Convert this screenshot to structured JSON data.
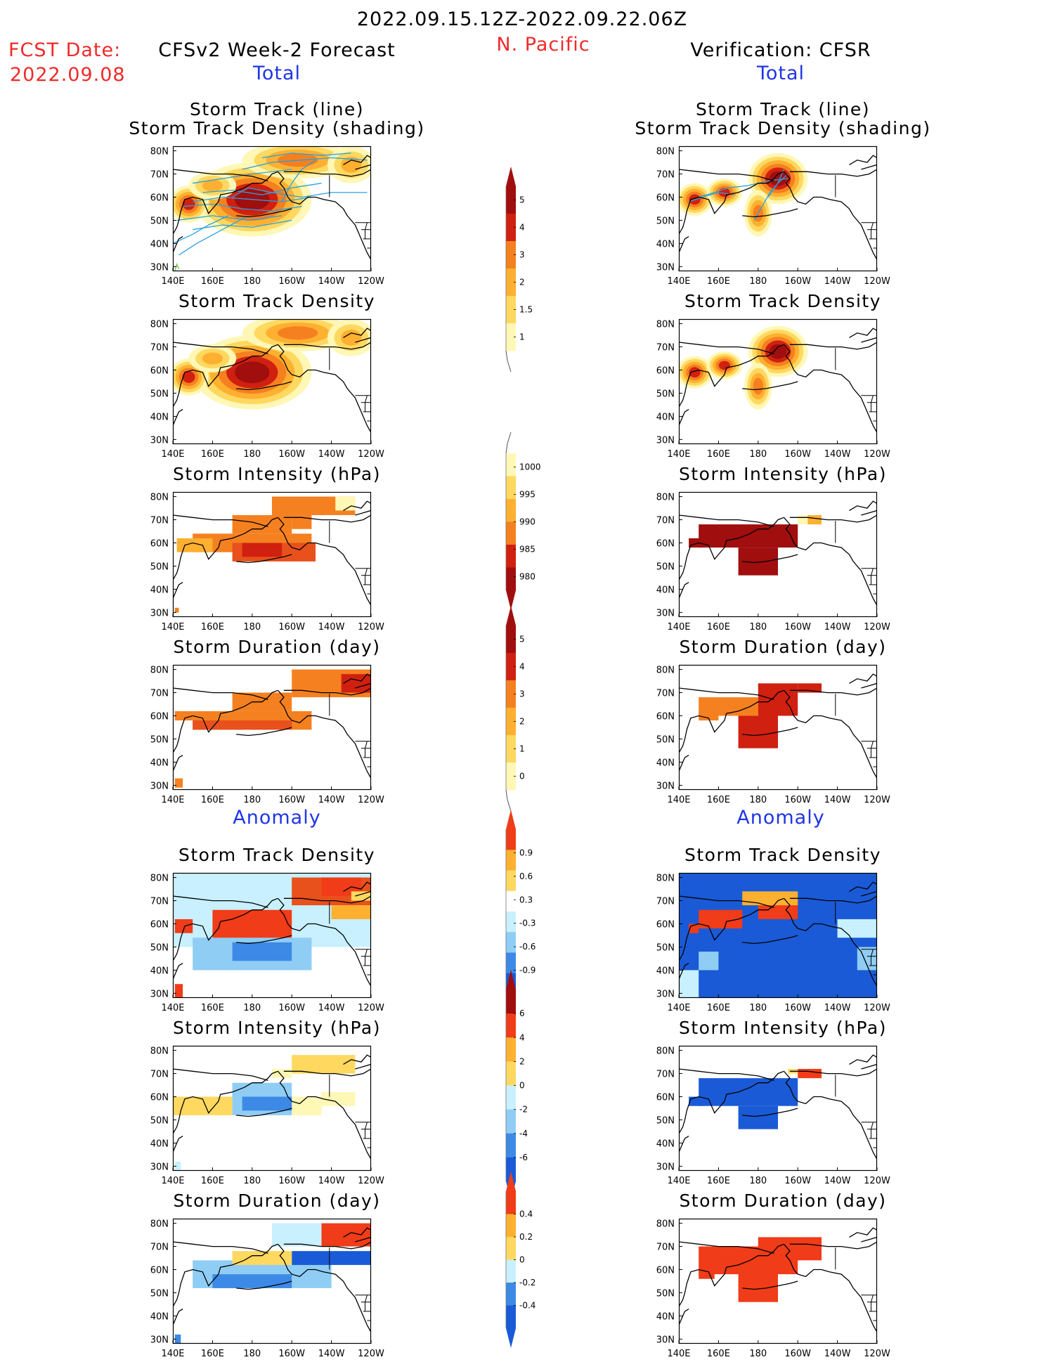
{
  "header": {
    "date_range": "2022.09.15.12Z-2022.09.22.06Z",
    "region": "N. Pacific",
    "fcst_label": "FCST Date:",
    "fcst_date": "2022.09.08",
    "left_title": "CFSv2 Week-2 Forecast",
    "right_title": "Verification: CFSR",
    "left_total": "Total",
    "right_total": "Total",
    "left_anomaly": "Anomaly",
    "right_anomaly": "Anomaly"
  },
  "panel_titles": {
    "track_line": "Storm Track (line)",
    "track_shading": "Storm Track Density (shading)",
    "density": "Storm Track Density",
    "intensity": "Storm Intensity (hPa)",
    "duration": "Storm Duration (day)"
  },
  "map_axes": {
    "lon_ticks": [
      "140E",
      "160E",
      "180",
      "160W",
      "140W",
      "120W"
    ],
    "lat_ticks": [
      "80N",
      "70N",
      "60N",
      "50N",
      "40N",
      "30N"
    ]
  },
  "colors": {
    "yellow_light": "#fff7b5",
    "yellow": "#ffd860",
    "orange_light": "#ffb030",
    "orange": "#f58020",
    "red_orange": "#e8501c",
    "red": "#d02010",
    "dark_red": "#a00e0e",
    "anom_red": "#f03c18",
    "cyan_light": "#c8f0ff",
    "sky": "#8fcdf5",
    "blue": "#3c8ae6",
    "blue_dark": "#1a5ad6",
    "track_line": "#2aa0e0",
    "track_green": "#70c040"
  },
  "colorbars": [
    {
      "name": "total-density",
      "labels": [
        "5",
        "4",
        "3",
        "2",
        "1.5",
        "1"
      ]
    },
    {
      "name": "total-intensity",
      "labels": [
        "1000",
        "995",
        "990",
        "985",
        "980"
      ]
    },
    {
      "name": "total-duration",
      "labels": [
        "5",
        "4",
        "3",
        "2",
        "1",
        "0"
      ]
    },
    {
      "name": "anomaly-density",
      "labels": [
        "0.9",
        "0.6",
        "0.3",
        "-0.3",
        "-0.6",
        "-0.9"
      ]
    },
    {
      "name": "anomaly-intensity",
      "labels": [
        "6",
        "4",
        "2",
        "0",
        "-2",
        "-4",
        "-6"
      ]
    },
    {
      "name": "anomaly-duration",
      "labels": [
        "0.4",
        "0.2",
        "0",
        "-0.2",
        "-0.4"
      ]
    }
  ],
  "chart_data": [
    {
      "type": "heatmap",
      "title": "Storm Track (line) Storm Track Density (shading)",
      "panel": "forecast-total-track",
      "xlabel": "",
      "ylabel": "",
      "x_range": [
        "140E",
        "120W"
      ],
      "y_range": [
        "30N",
        "80N"
      ],
      "features": [
        {
          "lon": 180,
          "lat": 58,
          "value": 5
        },
        {
          "lon": 145,
          "lat": 57,
          "value": 4
        },
        {
          "lon": 200,
          "lat": 75,
          "value": 2
        }
      ]
    },
    {
      "type": "heatmap",
      "title": "Storm Track (line) Storm Track Density (shading)",
      "panel": "verification-total-track",
      "xlabel": "",
      "ylabel": "",
      "x_range": [
        "140E",
        "120W"
      ],
      "y_range": [
        "30N",
        "80N"
      ],
      "features": [
        {
          "lon": 190,
          "lat": 67,
          "value": 5
        },
        {
          "lon": 145,
          "lat": 59,
          "value": 4
        }
      ]
    },
    {
      "type": "heatmap",
      "title": "Storm Track Density",
      "panel": "forecast-total-density",
      "x_range": [
        "140E",
        "120W"
      ],
      "y_range": [
        "30N",
        "80N"
      ]
    },
    {
      "type": "heatmap",
      "title": "Storm Track Density",
      "panel": "verification-total-density",
      "x_range": [
        "140E",
        "120W"
      ],
      "y_range": [
        "30N",
        "80N"
      ]
    },
    {
      "type": "heatmap",
      "title": "Storm Intensity (hPa)",
      "panel": "forecast-total-intensity",
      "x_range": [
        "140E",
        "120W"
      ],
      "y_range": [
        "30N",
        "80N"
      ]
    },
    {
      "type": "heatmap",
      "title": "Storm Intensity (hPa)",
      "panel": "verification-total-intensity",
      "x_range": [
        "140E",
        "120W"
      ],
      "y_range": [
        "30N",
        "80N"
      ]
    },
    {
      "type": "heatmap",
      "title": "Storm Duration (day)",
      "panel": "forecast-total-duration",
      "x_range": [
        "140E",
        "120W"
      ],
      "y_range": [
        "30N",
        "80N"
      ]
    },
    {
      "type": "heatmap",
      "title": "Storm Duration (day)",
      "panel": "verification-total-duration",
      "x_range": [
        "140E",
        "120W"
      ],
      "y_range": [
        "30N",
        "80N"
      ]
    },
    {
      "type": "heatmap",
      "title": "Storm Track Density",
      "panel": "forecast-anomaly-density",
      "x_range": [
        "140E",
        "120W"
      ],
      "y_range": [
        "30N",
        "80N"
      ]
    },
    {
      "type": "heatmap",
      "title": "Storm Track Density",
      "panel": "verification-anomaly-density",
      "x_range": [
        "140E",
        "120W"
      ],
      "y_range": [
        "30N",
        "80N"
      ]
    },
    {
      "type": "heatmap",
      "title": "Storm Intensity (hPa)",
      "panel": "forecast-anomaly-intensity",
      "x_range": [
        "140E",
        "120W"
      ],
      "y_range": [
        "30N",
        "80N"
      ]
    },
    {
      "type": "heatmap",
      "title": "Storm Intensity (hPa)",
      "panel": "verification-anomaly-intensity",
      "x_range": [
        "140E",
        "120W"
      ],
      "y_range": [
        "30N",
        "80N"
      ]
    },
    {
      "type": "heatmap",
      "title": "Storm Duration (day)",
      "panel": "forecast-anomaly-duration",
      "x_range": [
        "140E",
        "120W"
      ],
      "y_range": [
        "30N",
        "80N"
      ]
    },
    {
      "type": "heatmap",
      "title": "Storm Duration (day)",
      "panel": "verification-anomaly-duration",
      "x_range": [
        "140E",
        "120W"
      ],
      "y_range": [
        "30N",
        "80N"
      ]
    }
  ]
}
